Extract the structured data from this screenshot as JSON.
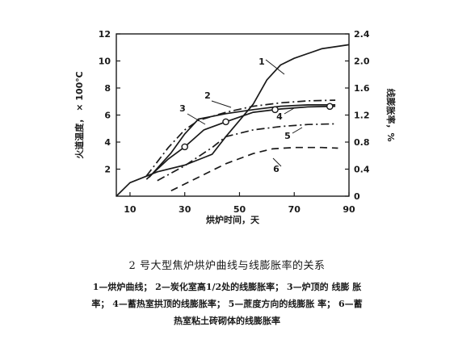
{
  "figure": {
    "caption_title": "2 号大型焦炉烘炉曲线与线膨胀率的关系",
    "caption_lines": [
      "1—烘炉曲线； 2—炭化室高1/2处的线膨胀率； 3—炉顶的 线膨 胀",
      "率； 4—蓄热室拱顶的线膨胀率； 5—蔗度方向的线膨胀 率； 6—蓄",
      "热室粘土砖砌体的线膨胀率"
    ]
  },
  "chart_data": {
    "type": "line",
    "xlabel": "烘炉时间，天",
    "ylabel_left": "火道温度， × 100℃",
    "ylabel_right": "线膨胀率，%",
    "xlim": [
      5,
      90
    ],
    "ylim_left": [
      0,
      12
    ],
    "ylim_right": [
      0,
      2.4
    ],
    "x_ticks": [
      "10",
      "30",
      "50",
      "70",
      "90"
    ],
    "x_tick_values": [
      10,
      30,
      50,
      70,
      90
    ],
    "y_left_ticks": [
      "2",
      "4",
      "6",
      "8",
      "10",
      "12"
    ],
    "y_left_tick_values": [
      2,
      4,
      6,
      8,
      10,
      12
    ],
    "y_right_ticks": [
      "0",
      "0.4",
      "0.8",
      "1.2",
      "1.6",
      "2.0",
      "2.4"
    ],
    "y_right_tick_values": [
      0,
      0.4,
      0.8,
      1.2,
      1.6,
      2.0,
      2.4
    ],
    "grid": false,
    "series": [
      {
        "name": "1",
        "axis": "left",
        "style": "solid",
        "x": [
          5,
          10,
          20,
          30,
          40,
          45,
          50,
          55,
          60,
          65,
          70,
          80,
          90
        ],
        "y": [
          0,
          1.0,
          1.8,
          2.3,
          3.1,
          4.4,
          5.6,
          6.8,
          8.6,
          9.7,
          10.2,
          10.9,
          11.2
        ]
      },
      {
        "name": "2",
        "axis": "right",
        "style": "solid",
        "x": [
          17,
          25,
          30,
          35,
          45,
          55,
          65,
          75,
          85
        ],
        "y": [
          0.28,
          0.64,
          0.92,
          1.14,
          1.22,
          1.28,
          1.33,
          1.35,
          1.35
        ]
      },
      {
        "name": "3",
        "axis": "right",
        "style": "dashdot",
        "x": [
          16,
          24,
          30,
          35,
          45,
          55,
          65,
          75,
          85
        ],
        "y": [
          0.3,
          0.72,
          0.98,
          1.12,
          1.24,
          1.33,
          1.38,
          1.41,
          1.42
        ]
      },
      {
        "name": "4",
        "axis": "right",
        "style": "solid",
        "markers": true,
        "marker_x": [
          30,
          45,
          63,
          83
        ],
        "x": [
          16,
          24,
          30,
          37,
          45,
          55,
          65,
          75,
          85
        ],
        "y": [
          0.25,
          0.55,
          0.73,
          0.98,
          1.1,
          1.24,
          1.29,
          1.32,
          1.33
        ]
      },
      {
        "name": "5",
        "axis": "right",
        "style": "dashdot",
        "x": [
          20,
          30,
          40,
          45,
          55,
          65,
          75,
          85
        ],
        "y": [
          0.23,
          0.45,
          0.72,
          0.88,
          0.98,
          1.03,
          1.06,
          1.07
        ]
      },
      {
        "name": "6",
        "axis": "right",
        "style": "dashed",
        "x": [
          25,
          35,
          45,
          55,
          62,
          70,
          80,
          86
        ],
        "y": [
          0.08,
          0.28,
          0.48,
          0.63,
          0.7,
          0.72,
          0.72,
          0.71
        ]
      }
    ]
  }
}
